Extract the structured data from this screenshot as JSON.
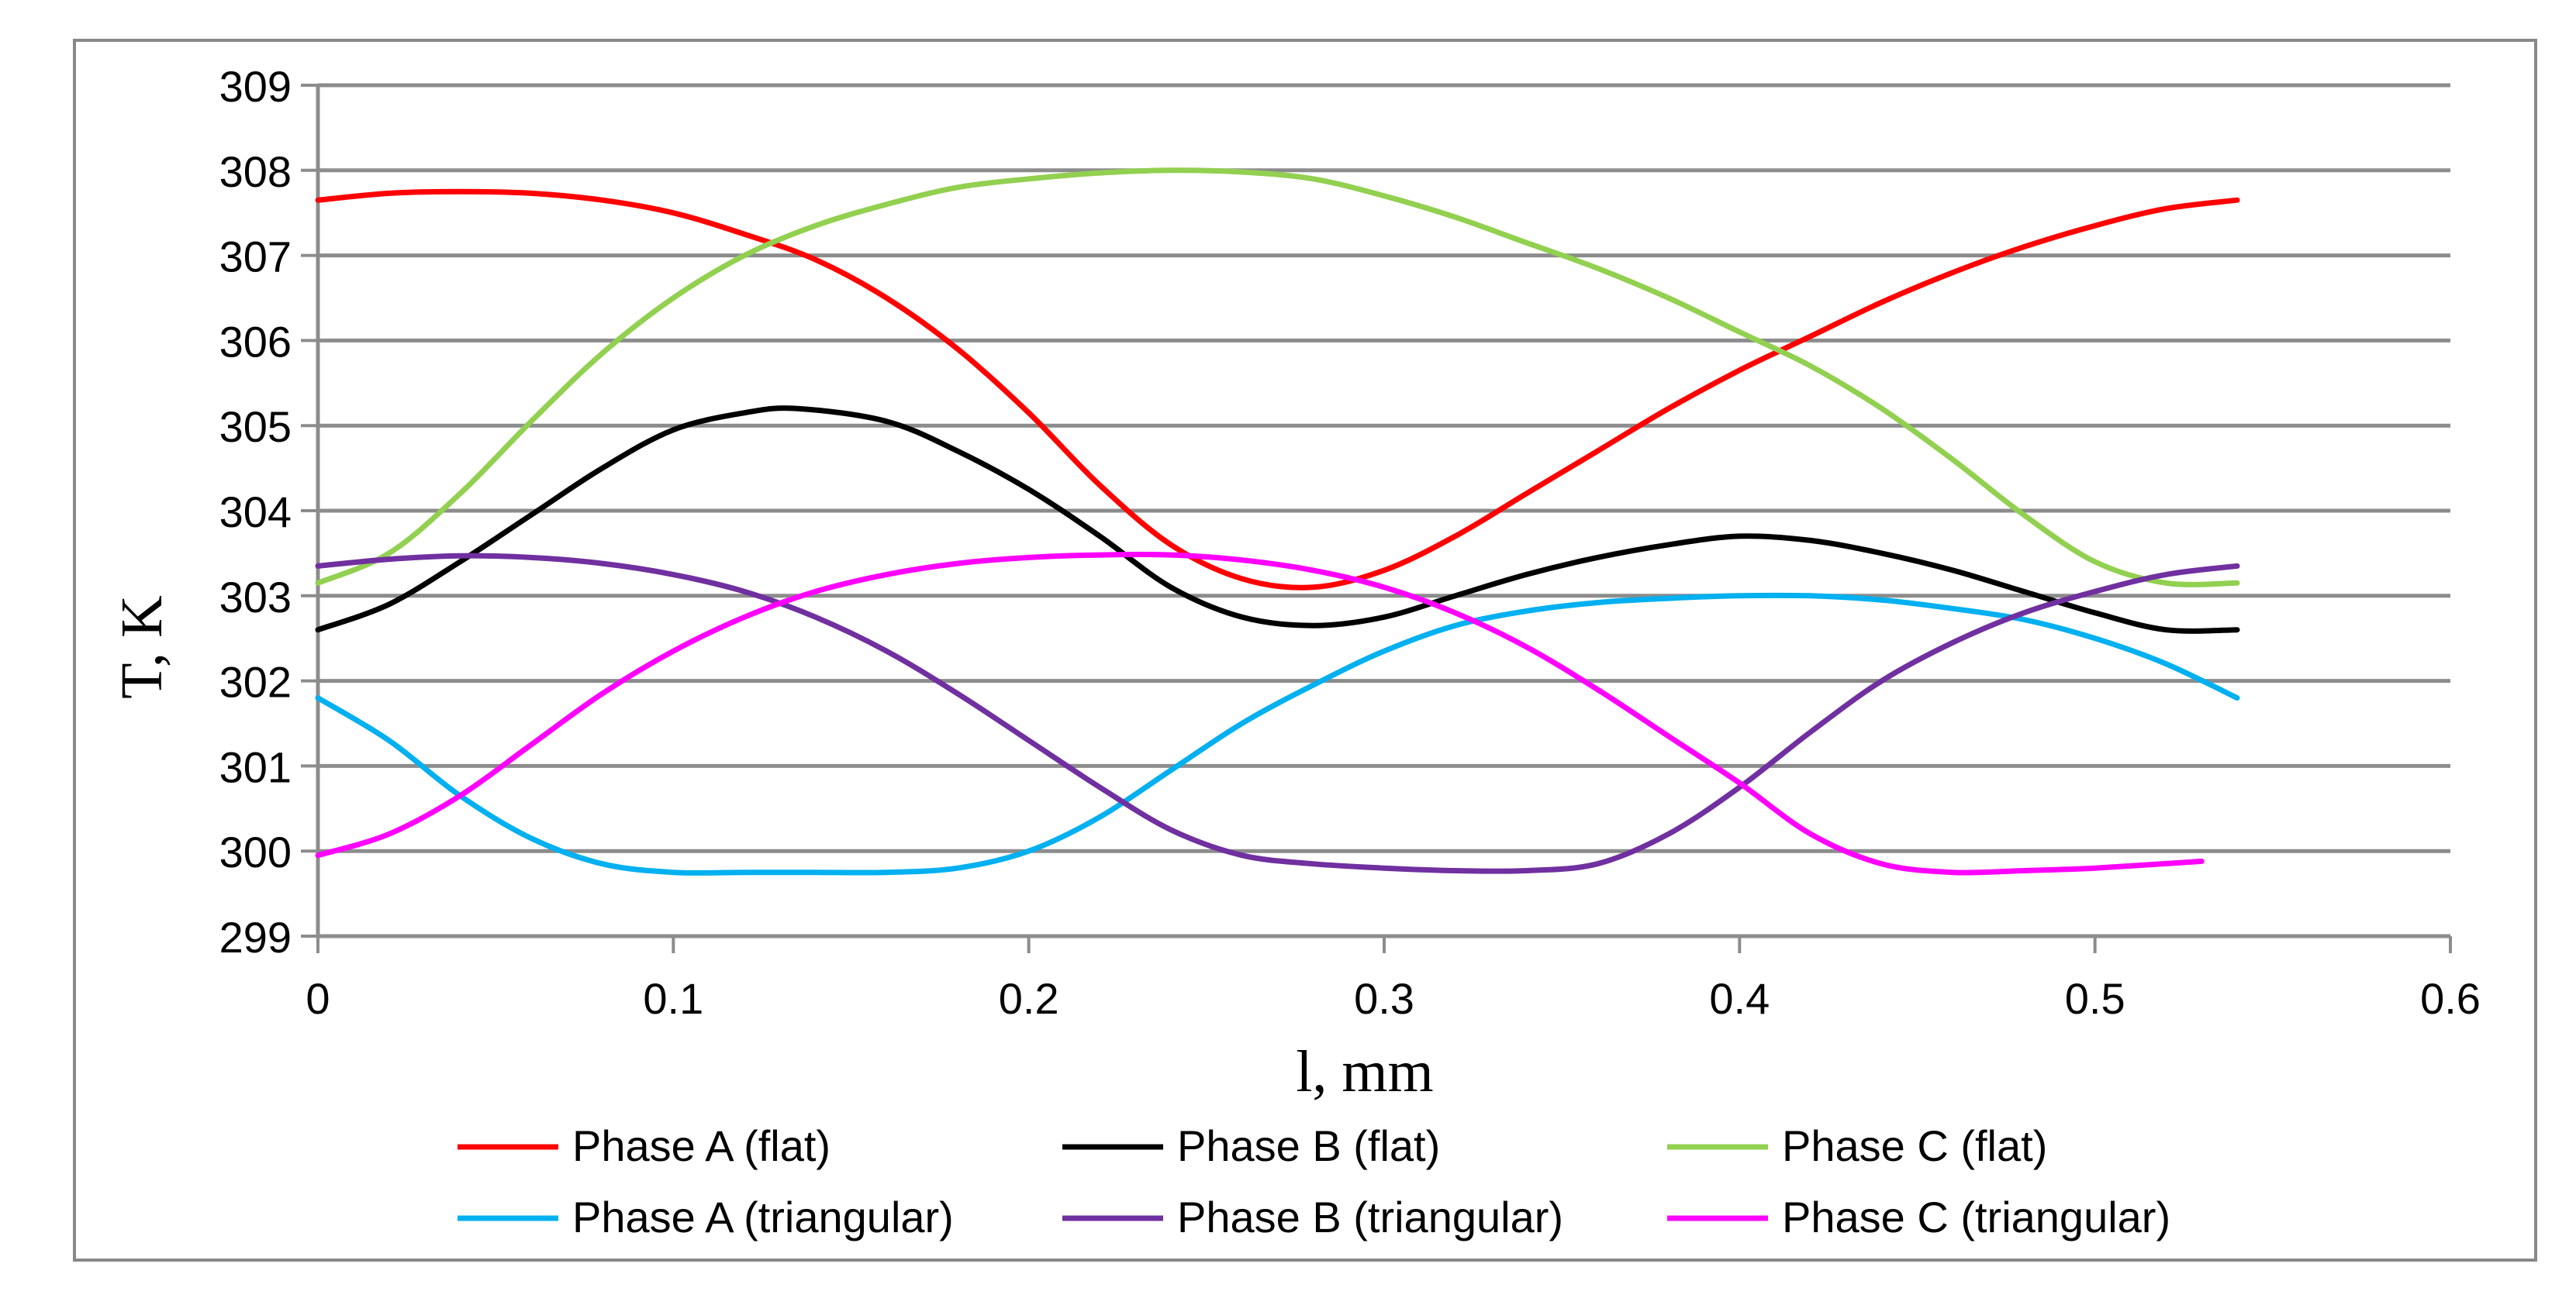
{
  "chart_data": {
    "type": "line",
    "title": "",
    "xlabel": "l, mm",
    "ylabel": "T, K",
    "xlim": [
      0,
      0.6
    ],
    "ylim": [
      299,
      309
    ],
    "xticks": [
      0,
      0.1,
      0.2,
      0.3,
      0.4,
      0.5,
      0.6
    ],
    "xtick_labels": [
      "0",
      "0.1",
      "0.2",
      "0.3",
      "0.4",
      "0.5",
      "0.6"
    ],
    "yticks": [
      299,
      300,
      301,
      302,
      303,
      304,
      305,
      306,
      307,
      308,
      309
    ],
    "ytick_labels": [
      "299",
      "300",
      "301",
      "302",
      "303",
      "304",
      "305",
      "306",
      "307",
      "308",
      "309"
    ],
    "grid": true,
    "legend_position": "bottom",
    "series": [
      {
        "name": "Phase A (flat)",
        "color": "#ff0000",
        "x": [
          0,
          0.02,
          0.04,
          0.06,
          0.08,
          0.1,
          0.12,
          0.14,
          0.16,
          0.18,
          0.2,
          0.22,
          0.24,
          0.26,
          0.28,
          0.3,
          0.32,
          0.34,
          0.36,
          0.38,
          0.4,
          0.42,
          0.44,
          0.46,
          0.48,
          0.5,
          0.52,
          0.54
        ],
        "y": [
          307.65,
          307.73,
          307.75,
          307.73,
          307.65,
          307.5,
          307.25,
          306.95,
          306.5,
          305.9,
          305.15,
          304.3,
          303.6,
          303.2,
          303.1,
          303.3,
          303.7,
          304.2,
          304.7,
          305.2,
          305.65,
          306.05,
          306.45,
          306.8,
          307.1,
          307.35,
          307.55,
          307.65
        ]
      },
      {
        "name": "Phase B (flat)",
        "color": "#000000",
        "x": [
          0,
          0.02,
          0.04,
          0.06,
          0.08,
          0.1,
          0.12,
          0.135,
          0.16,
          0.18,
          0.2,
          0.22,
          0.24,
          0.26,
          0.28,
          0.3,
          0.32,
          0.34,
          0.36,
          0.38,
          0.4,
          0.42,
          0.44,
          0.46,
          0.48,
          0.5,
          0.52,
          0.54
        ],
        "y": [
          302.6,
          302.9,
          303.4,
          303.95,
          304.5,
          304.95,
          305.15,
          305.2,
          305.05,
          304.7,
          304.25,
          303.7,
          303.1,
          302.75,
          302.65,
          302.75,
          303.0,
          303.25,
          303.45,
          303.6,
          303.7,
          303.65,
          303.5,
          303.3,
          303.05,
          302.8,
          302.6,
          302.6
        ]
      },
      {
        "name": "Phase C (flat)",
        "color": "#92d050",
        "x": [
          0,
          0.02,
          0.04,
          0.06,
          0.08,
          0.1,
          0.12,
          0.14,
          0.16,
          0.18,
          0.2,
          0.22,
          0.24,
          0.26,
          0.28,
          0.3,
          0.32,
          0.34,
          0.36,
          0.38,
          0.4,
          0.42,
          0.44,
          0.46,
          0.48,
          0.5,
          0.52,
          0.54
        ],
        "y": [
          303.15,
          303.5,
          304.2,
          305.05,
          305.85,
          306.5,
          307.0,
          307.35,
          307.6,
          307.8,
          307.9,
          307.97,
          308.0,
          307.98,
          307.9,
          307.7,
          307.45,
          307.15,
          306.85,
          306.5,
          306.1,
          305.7,
          305.2,
          304.6,
          303.95,
          303.4,
          303.15,
          303.15
        ]
      },
      {
        "name": "Phase A (triangular)",
        "color": "#00b0f0",
        "x": [
          0,
          0.02,
          0.04,
          0.06,
          0.08,
          0.1,
          0.12,
          0.14,
          0.16,
          0.18,
          0.2,
          0.22,
          0.24,
          0.26,
          0.28,
          0.3,
          0.32,
          0.34,
          0.36,
          0.38,
          0.4,
          0.42,
          0.44,
          0.46,
          0.48,
          0.5,
          0.52,
          0.54
        ],
        "y": [
          301.8,
          301.3,
          300.65,
          300.15,
          299.85,
          299.75,
          299.75,
          299.75,
          299.75,
          299.8,
          300.0,
          300.4,
          300.95,
          301.5,
          301.95,
          302.35,
          302.65,
          302.82,
          302.92,
          302.97,
          303.0,
          303.0,
          302.95,
          302.85,
          302.72,
          302.5,
          302.2,
          301.8
        ]
      },
      {
        "name": "Phase B (triangular)",
        "color": "#7030a0",
        "x": [
          0,
          0.02,
          0.04,
          0.06,
          0.08,
          0.1,
          0.12,
          0.14,
          0.16,
          0.18,
          0.2,
          0.22,
          0.24,
          0.26,
          0.28,
          0.3,
          0.32,
          0.34,
          0.36,
          0.38,
          0.4,
          0.42,
          0.44,
          0.46,
          0.48,
          0.5,
          0.52,
          0.54
        ],
        "y": [
          303.35,
          303.43,
          303.47,
          303.45,
          303.38,
          303.25,
          303.05,
          302.75,
          302.35,
          301.85,
          301.3,
          300.75,
          300.25,
          299.95,
          299.85,
          299.8,
          299.77,
          299.77,
          299.85,
          300.2,
          300.75,
          301.4,
          302.0,
          302.45,
          302.8,
          303.05,
          303.25,
          303.35
        ]
      },
      {
        "name": "Phase C (triangular)",
        "color": "#ff00ff",
        "x": [
          0,
          0.02,
          0.04,
          0.06,
          0.08,
          0.1,
          0.12,
          0.14,
          0.16,
          0.18,
          0.2,
          0.22,
          0.24,
          0.26,
          0.28,
          0.3,
          0.32,
          0.34,
          0.36,
          0.38,
          0.4,
          0.42,
          0.44,
          0.46,
          0.48,
          0.5,
          0.53
        ],
        "y": [
          299.95,
          300.2,
          300.65,
          301.25,
          301.85,
          302.35,
          302.75,
          303.05,
          303.25,
          303.38,
          303.45,
          303.48,
          303.48,
          303.42,
          303.3,
          303.1,
          302.8,
          302.4,
          301.9,
          301.35,
          300.8,
          300.2,
          299.85,
          299.75,
          299.77,
          299.8,
          299.88
        ]
      }
    ]
  }
}
